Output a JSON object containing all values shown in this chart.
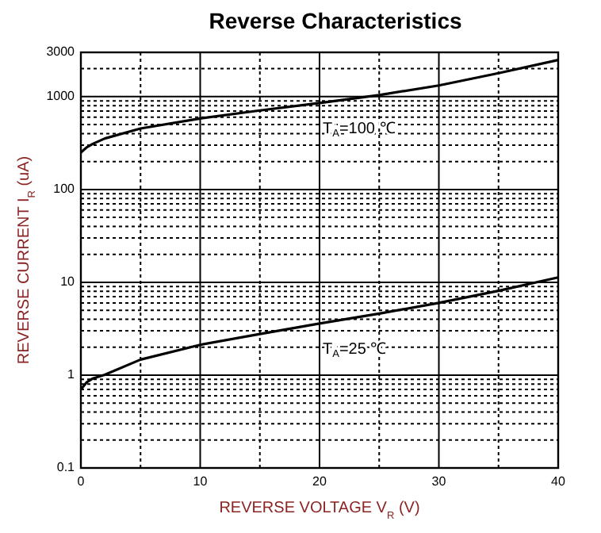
{
  "chart_data": {
    "type": "line",
    "title": "Reverse Characteristics",
    "xlabel": "REVERSE VOLTAGE  V$_{R}$  (V)",
    "ylabel": "REVERSE CURRENT  I$_{R}$  (uA)",
    "x": [
      0,
      0.5,
      1,
      2,
      5,
      10,
      15,
      20,
      25,
      30,
      35,
      40
    ],
    "series": [
      {
        "name": "T$_{A}$=100 ℃",
        "color": "#000000",
        "values": [
          250,
          285,
          310,
          354,
          454,
          582,
          710,
          853,
          1040,
          1320,
          1790,
          2480
        ]
      },
      {
        "name": "T$_{A}$=25 ℃",
        "color": "#000000",
        "values": [
          0.7,
          0.84,
          0.92,
          1.01,
          1.47,
          2.12,
          2.77,
          3.6,
          4.6,
          6.0,
          8.1,
          11.3
        ]
      }
    ],
    "xlim": [
      0,
      40
    ],
    "xticks": [
      0,
      10,
      20,
      30,
      40
    ],
    "ylim": [
      0.1,
      3000
    ],
    "yticks": [
      0.1,
      1,
      10,
      100,
      1000,
      3000
    ],
    "log": "y",
    "grid": true,
    "marker": "none",
    "line_style": "solid"
  }
}
